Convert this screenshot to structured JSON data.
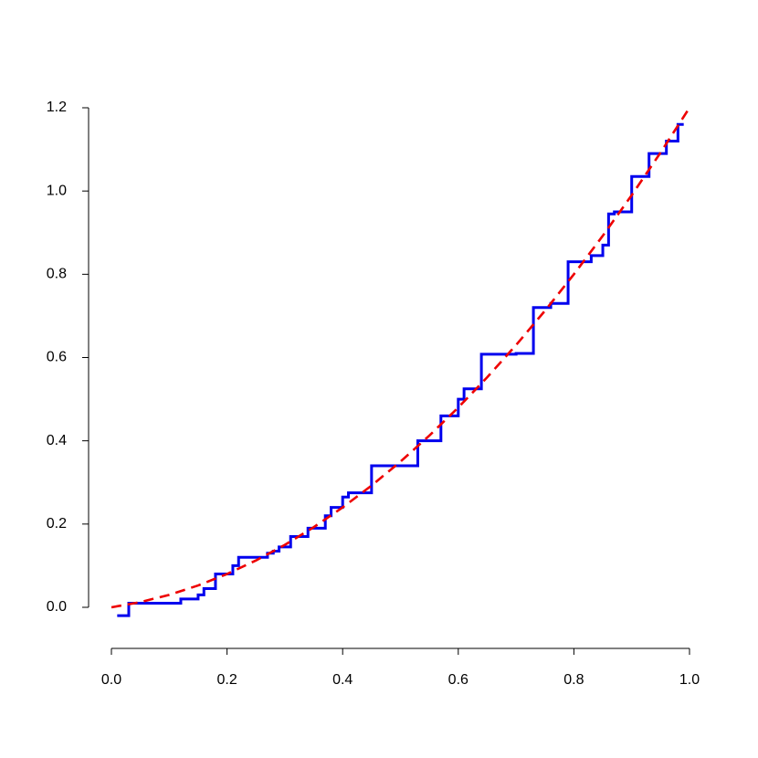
{
  "chart_data": {
    "type": "line",
    "xlim": [
      0,
      1
    ],
    "ylim": [
      0,
      1.2
    ],
    "xticks": [
      {
        "value": 0,
        "label": "0.0"
      },
      0.2,
      0.4,
      0.6,
      0.8,
      {
        "value": 1,
        "label": "1.0"
      }
    ],
    "yticks": [
      {
        "value": 0,
        "label": "0.0"
      },
      0.2,
      0.4,
      0.6,
      0.8,
      {
        "value": 1,
        "label": "1.0"
      },
      1.2
    ],
    "series": [
      {
        "color": "#0000ee",
        "style": "step",
        "x": [
          0.01,
          0.03,
          0.12,
          0.15,
          0.16,
          0.18,
          0.21,
          0.22,
          0.27,
          0.28,
          0.29,
          0.31,
          0.34,
          0.37,
          0.38,
          0.4,
          0.41,
          0.45,
          0.53,
          0.57,
          0.6,
          0.61,
          0.64,
          0.7,
          0.73,
          0.76,
          0.79,
          0.83,
          0.85,
          0.86,
          0.87,
          0.9,
          0.93,
          0.96,
          0.98,
          0.99
        ],
        "values": [
          -0.02,
          0.01,
          0.02,
          0.03,
          0.045,
          0.08,
          0.1,
          0.12,
          0.13,
          0.135,
          0.145,
          0.17,
          0.19,
          0.22,
          0.24,
          0.265,
          0.275,
          0.34,
          0.4,
          0.46,
          0.5,
          0.525,
          0.608,
          0.61,
          0.72,
          0.73,
          0.83,
          0.845,
          0.87,
          0.945,
          0.95,
          1.035,
          1.09,
          1.12,
          1.16,
          1.16
        ]
      },
      {
        "color": "#ee0000",
        "style": "dashed",
        "x": [
          0,
          0.05,
          0.1,
          0.15,
          0.2,
          0.25,
          0.3,
          0.35,
          0.4,
          0.45,
          0.5,
          0.55,
          0.6,
          0.65,
          0.7,
          0.75,
          0.8,
          0.85,
          0.9,
          0.95,
          1
        ],
        "values": [
          0,
          0.0125,
          0.03,
          0.0525,
          0.08,
          0.1125,
          0.15,
          0.1925,
          0.24,
          0.2925,
          0.35,
          0.4125,
          0.48,
          0.5525,
          0.63,
          0.7125,
          0.8,
          0.8925,
          0.99,
          1.0925,
          1.2
        ]
      }
    ]
  }
}
